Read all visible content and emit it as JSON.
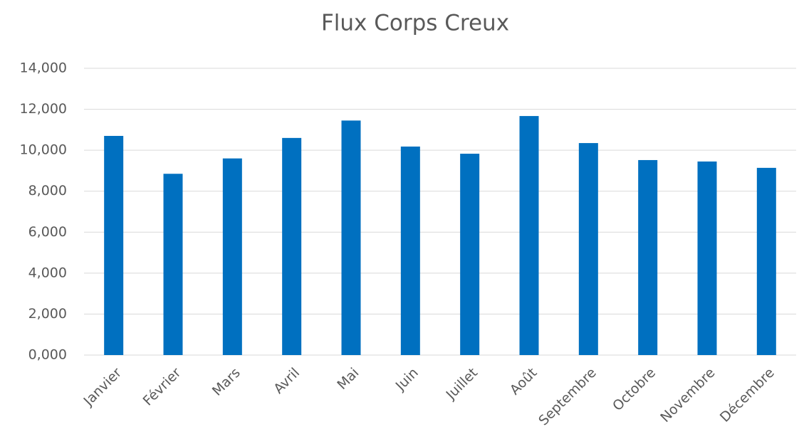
{
  "chart_data": {
    "type": "bar",
    "title": "Flux Corps Creux",
    "categories": [
      "Janvier",
      "Février",
      "Mars",
      "Avril",
      "Mai",
      "Juin",
      "Juillet",
      "Août",
      "Septembre",
      "Octobre",
      "Novembre",
      "Décembre"
    ],
    "values": [
      10700,
      8850,
      9600,
      10600,
      11450,
      10180,
      9830,
      11670,
      10350,
      9520,
      9450,
      9140
    ],
    "color": "#0070c0",
    "ylim": [
      0,
      14000
    ],
    "yticks": [
      {
        "value": 0,
        "label": "0,000"
      },
      {
        "value": 2000,
        "label": "2,000"
      },
      {
        "value": 4000,
        "label": "4,000"
      },
      {
        "value": 6000,
        "label": "6,000"
      },
      {
        "value": 8000,
        "label": "8,000"
      },
      {
        "value": 10000,
        "label": "10,000"
      },
      {
        "value": 12000,
        "label": "12,000"
      },
      {
        "value": 14000,
        "label": "14,000"
      }
    ],
    "grid": true
  }
}
